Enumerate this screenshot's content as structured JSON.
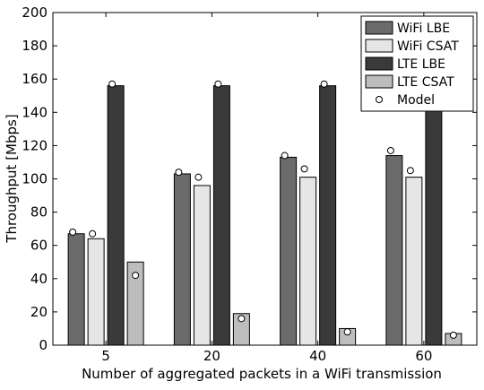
{
  "chart_data": {
    "type": "bar",
    "title": "",
    "xlabel": "Number of aggregated packets in a WiFi transmission",
    "ylabel": "Throughput [Mbps]",
    "ylim": [
      0,
      200
    ],
    "yticks": [
      0,
      20,
      40,
      60,
      80,
      100,
      120,
      140,
      160,
      180,
      200
    ],
    "categories": [
      "5",
      "20",
      "40",
      "60"
    ],
    "grid": false,
    "legend_position": "top-right",
    "series": [
      {
        "name": "WiFi LBE",
        "color": "#6b6b6b",
        "values": [
          67,
          103,
          113,
          114
        ]
      },
      {
        "name": "WiFi CSAT",
        "color": "#e6e6e6",
        "values": [
          64,
          96,
          101,
          101
        ]
      },
      {
        "name": "LTE LBE",
        "color": "#3a3a3a",
        "values": [
          156,
          156,
          156,
          157
        ]
      },
      {
        "name": "LTE CSAT",
        "color": "#bdbdbd",
        "values": [
          50,
          19,
          10,
          7
        ]
      }
    ],
    "model": {
      "name": "Model",
      "points": [
        [
          68,
          67,
          157,
          42
        ],
        [
          104,
          101,
          157,
          16
        ],
        [
          114,
          106,
          157,
          8
        ],
        [
          117,
          105,
          157,
          6
        ]
      ]
    }
  }
}
